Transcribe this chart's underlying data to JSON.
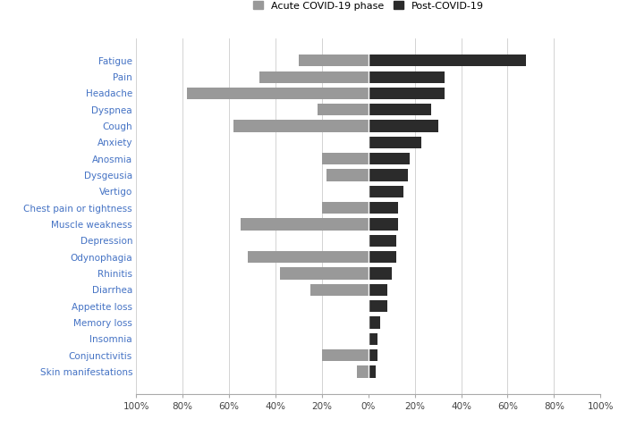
{
  "categories": [
    "Fatigue",
    "Pain",
    "Headache",
    "Dyspnea",
    "Cough",
    "Anxiety",
    "Anosmia",
    "Dysgeusia",
    "Vertigo",
    "Chest pain or tightness",
    "Muscle weakness",
    "Depression",
    "Odynophagia",
    "Rhinitis",
    "Diarrhea",
    "Appetite loss",
    "Memory loss",
    "Insomnia",
    "Conjunctivitis",
    "Skin manifestations"
  ],
  "acute_values": [
    30,
    47,
    78,
    22,
    58,
    0,
    20,
    18,
    0,
    20,
    55,
    0,
    52,
    38,
    25,
    0,
    0,
    0,
    20,
    5
  ],
  "post_values": [
    68,
    33,
    33,
    27,
    30,
    23,
    18,
    17,
    15,
    13,
    13,
    12,
    12,
    10,
    8,
    8,
    5,
    4,
    4,
    3
  ],
  "acute_color": "#999999",
  "post_color": "#2b2b2b",
  "label_color": "#4472c4",
  "legend_acute": "Acute COVID-19 phase",
  "legend_post": "Post-COVID-19",
  "bar_height": 0.72,
  "xlim": 100,
  "tick_labels": [
    "100%",
    "80%",
    "60%",
    "40%",
    "20%",
    "0%",
    "20%",
    "40%",
    "60%",
    "80%",
    "100%"
  ]
}
